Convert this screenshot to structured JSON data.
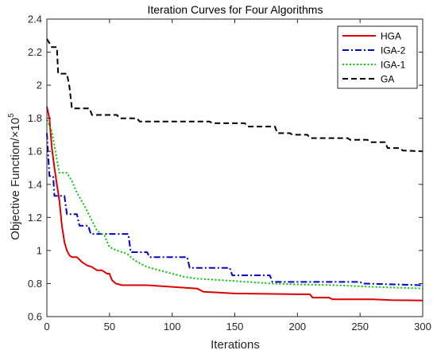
{
  "chart_data": {
    "type": "line",
    "title": "Iteration Curves for Four Algorithms",
    "xlabel": "Iterations",
    "ylabel": "Objective Function/×10",
    "ylabel_exponent": "5",
    "xlim": [
      0,
      300
    ],
    "ylim": [
      0.6,
      2.4
    ],
    "xticks": [
      0,
      50,
      100,
      150,
      200,
      250,
      300
    ],
    "yticks": [
      0.6,
      0.8,
      1,
      1.2,
      1.4,
      1.6,
      1.8,
      2,
      2.2,
      2.4
    ],
    "ytick_labels": [
      "0.6",
      "0.8",
      "1",
      "1.2",
      "1.4",
      "1.6",
      "1.8",
      "2",
      "2.2",
      "2.4"
    ],
    "grid": false,
    "legend_position": "top-right",
    "series": [
      {
        "name": "HGA",
        "color": "#e00000",
        "dash": "solid",
        "points": [
          [
            0,
            1.87
          ],
          [
            2,
            1.8
          ],
          [
            4,
            1.62
          ],
          [
            6,
            1.5
          ],
          [
            8,
            1.4
          ],
          [
            10,
            1.3
          ],
          [
            12,
            1.15
          ],
          [
            14,
            1.05
          ],
          [
            16,
            1.0
          ],
          [
            18,
            0.97
          ],
          [
            20,
            0.96
          ],
          [
            24,
            0.96
          ],
          [
            28,
            0.93
          ],
          [
            32,
            0.91
          ],
          [
            36,
            0.9
          ],
          [
            40,
            0.88
          ],
          [
            44,
            0.88
          ],
          [
            48,
            0.86
          ],
          [
            50,
            0.86
          ],
          [
            52,
            0.82
          ],
          [
            55,
            0.8
          ],
          [
            60,
            0.79
          ],
          [
            80,
            0.79
          ],
          [
            100,
            0.78
          ],
          [
            120,
            0.77
          ],
          [
            125,
            0.75
          ],
          [
            150,
            0.74
          ],
          [
            200,
            0.735
          ],
          [
            210,
            0.735
          ],
          [
            212,
            0.715
          ],
          [
            225,
            0.715
          ],
          [
            228,
            0.705
          ],
          [
            260,
            0.705
          ],
          [
            275,
            0.7
          ],
          [
            300,
            0.697
          ]
        ]
      },
      {
        "name": "IGA-2",
        "color": "#0000d0",
        "dash": "dashdot",
        "points": [
          [
            0,
            1.71
          ],
          [
            2,
            1.45
          ],
          [
            5,
            1.45
          ],
          [
            6,
            1.33
          ],
          [
            14,
            1.33
          ],
          [
            16,
            1.22
          ],
          [
            24,
            1.22
          ],
          [
            26,
            1.15
          ],
          [
            33,
            1.15
          ],
          [
            35,
            1.1
          ],
          [
            65,
            1.1
          ],
          [
            67,
            0.99
          ],
          [
            80,
            0.99
          ],
          [
            82,
            0.96
          ],
          [
            112,
            0.96
          ],
          [
            114,
            0.895
          ],
          [
            146,
            0.895
          ],
          [
            148,
            0.85
          ],
          [
            178,
            0.85
          ],
          [
            180,
            0.81
          ],
          [
            250,
            0.81
          ],
          [
            252,
            0.8
          ],
          [
            300,
            0.79
          ]
        ]
      },
      {
        "name": "IGA-1",
        "color": "#00c800",
        "dash": "dotted",
        "points": [
          [
            0,
            1.79
          ],
          [
            4,
            1.72
          ],
          [
            8,
            1.55
          ],
          [
            10,
            1.47
          ],
          [
            16,
            1.47
          ],
          [
            20,
            1.42
          ],
          [
            24,
            1.35
          ],
          [
            30,
            1.27
          ],
          [
            36,
            1.18
          ],
          [
            40,
            1.12
          ],
          [
            46,
            1.09
          ],
          [
            50,
            1.02
          ],
          [
            56,
            1.0
          ],
          [
            64,
            0.98
          ],
          [
            70,
            0.94
          ],
          [
            80,
            0.9
          ],
          [
            90,
            0.88
          ],
          [
            100,
            0.86
          ],
          [
            110,
            0.84
          ],
          [
            120,
            0.83
          ],
          [
            140,
            0.82
          ],
          [
            160,
            0.81
          ],
          [
            180,
            0.8
          ],
          [
            200,
            0.795
          ],
          [
            230,
            0.79
          ],
          [
            260,
            0.78
          ],
          [
            280,
            0.775
          ],
          [
            300,
            0.77
          ]
        ]
      },
      {
        "name": "GA",
        "color": "#000000",
        "dash": "dashed",
        "points": [
          [
            0,
            2.28
          ],
          [
            4,
            2.23
          ],
          [
            8,
            2.23
          ],
          [
            9,
            2.07
          ],
          [
            16,
            2.07
          ],
          [
            18,
            1.99
          ],
          [
            20,
            1.86
          ],
          [
            34,
            1.86
          ],
          [
            36,
            1.82
          ],
          [
            56,
            1.82
          ],
          [
            58,
            1.8
          ],
          [
            72,
            1.8
          ],
          [
            74,
            1.78
          ],
          [
            130,
            1.78
          ],
          [
            132,
            1.77
          ],
          [
            158,
            1.77
          ],
          [
            160,
            1.75
          ],
          [
            182,
            1.75
          ],
          [
            184,
            1.71
          ],
          [
            194,
            1.71
          ],
          [
            196,
            1.7
          ],
          [
            208,
            1.7
          ],
          [
            210,
            1.68
          ],
          [
            240,
            1.68
          ],
          [
            242,
            1.67
          ],
          [
            256,
            1.67
          ],
          [
            258,
            1.655
          ],
          [
            270,
            1.655
          ],
          [
            272,
            1.62
          ],
          [
            282,
            1.62
          ],
          [
            284,
            1.605
          ],
          [
            300,
            1.6
          ]
        ]
      }
    ]
  }
}
